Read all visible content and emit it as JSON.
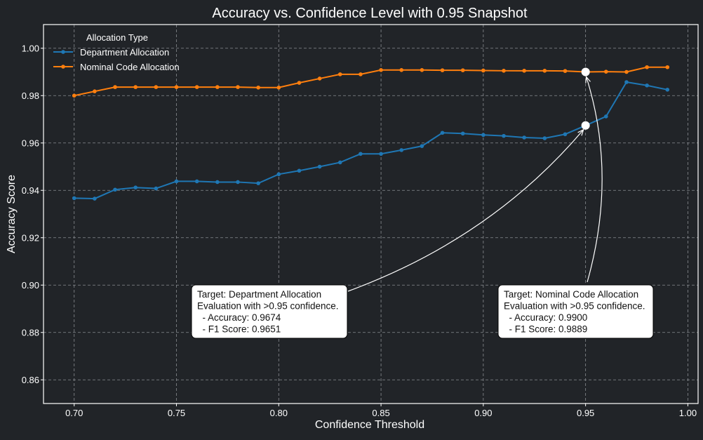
{
  "chart_data": {
    "type": "line",
    "title": "Accuracy vs. Confidence Level with 0.95 Snapshot",
    "xlabel": "Confidence Threshold",
    "ylabel": "Accuracy Score",
    "xlim": [
      0.685,
      1.005
    ],
    "ylim": [
      0.85,
      1.01
    ],
    "xticks": [
      "0.70",
      "0.75",
      "0.80",
      "0.85",
      "0.90",
      "0.95",
      "1.00"
    ],
    "yticks": [
      "0.86",
      "0.88",
      "0.90",
      "0.92",
      "0.94",
      "0.96",
      "0.98",
      "1.00"
    ],
    "grid": true,
    "legend": {
      "title": "Allocation Type",
      "placement": "top-left"
    },
    "x": [
      0.7,
      0.71,
      0.72,
      0.73,
      0.74,
      0.75,
      0.76,
      0.77,
      0.78,
      0.79,
      0.8,
      0.81,
      0.82,
      0.83,
      0.84,
      0.85,
      0.86,
      0.87,
      0.88,
      0.89,
      0.9,
      0.91,
      0.92,
      0.93,
      0.94,
      0.95,
      0.96,
      0.97,
      0.98,
      0.99
    ],
    "series": [
      {
        "name": "Department Allocation",
        "color": "#1f77b4",
        "values": [
          0.9367,
          0.9365,
          0.9403,
          0.9412,
          0.9408,
          0.9438,
          0.9438,
          0.9435,
          0.9435,
          0.943,
          0.9468,
          0.9483,
          0.95,
          0.9518,
          0.9554,
          0.9554,
          0.957,
          0.9587,
          0.9643,
          0.964,
          0.9634,
          0.963,
          0.9623,
          0.962,
          0.9637,
          0.9674,
          0.9712,
          0.9857,
          0.9843,
          0.9825
        ]
      },
      {
        "name": "Nominal Code Allocation",
        "color": "#ff7f0e",
        "values": [
          0.98,
          0.9818,
          0.9836,
          0.9836,
          0.9836,
          0.9836,
          0.9836,
          0.9836,
          0.9836,
          0.9834,
          0.9834,
          0.9854,
          0.9872,
          0.989,
          0.989,
          0.9908,
          0.9908,
          0.9908,
          0.9907,
          0.9907,
          0.9906,
          0.9905,
          0.9905,
          0.9905,
          0.9904,
          0.99,
          0.9901,
          0.99,
          0.992,
          0.992
        ]
      }
    ],
    "annotations": [
      {
        "target": [
          0.95,
          0.9674
        ],
        "series": 0,
        "lines": [
          "Target: Department Allocation",
          "Evaluation with >0.95 confidence.",
          "  - Accuracy: 0.9674",
          "  - F1 Score: 0.9651"
        ]
      },
      {
        "target": [
          0.95,
          0.99
        ],
        "series": 1,
        "lines": [
          "Target: Nominal Code Allocation",
          "Evaluation with >0.95 confidence.",
          "  - Accuracy: 0.9900",
          "  - F1 Score: 0.9889"
        ]
      }
    ]
  }
}
